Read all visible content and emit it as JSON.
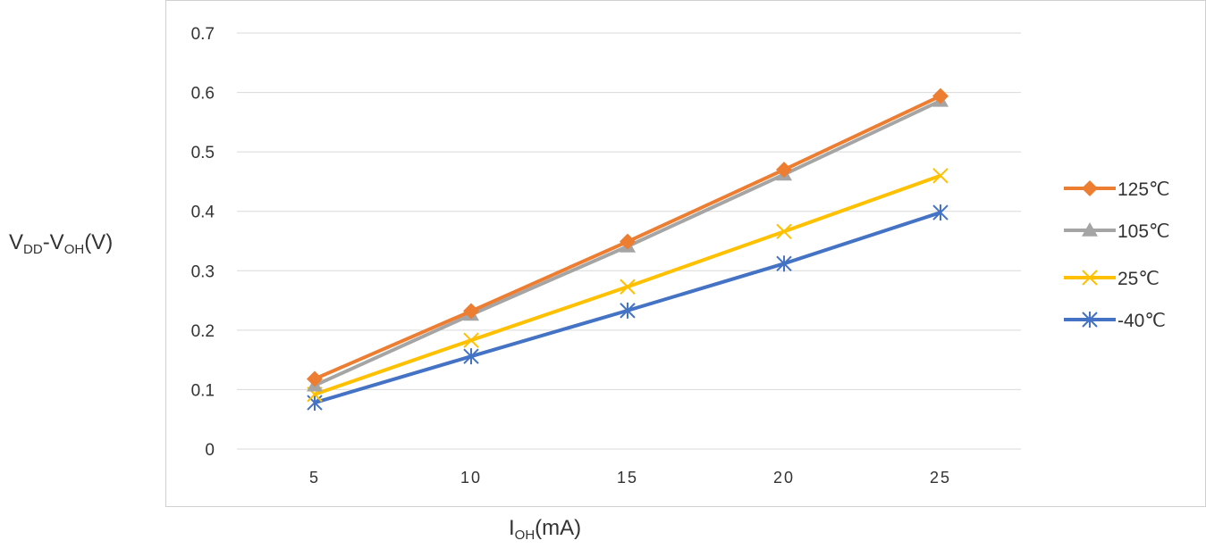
{
  "chart_data": {
    "type": "line",
    "x": [
      5,
      10,
      15,
      20,
      25
    ],
    "ylim": [
      0,
      0.7
    ],
    "yticks": [
      "0",
      "0.1",
      "0.2",
      "0.3",
      "0.4",
      "0.5",
      "0.6",
      "0.7"
    ],
    "xticks": [
      "5",
      "10",
      "15",
      "20",
      "25"
    ],
    "grid": true,
    "legend_position": "right",
    "ylabel": {
      "main1": "V",
      "sub1": "DD",
      "mid": "-V",
      "sub2": "OH",
      "tail": "(V)"
    },
    "xlabel": {
      "main": "I",
      "sub": "OH",
      "tail": "(mA)"
    },
    "series": [
      {
        "name": "125℃",
        "color": "#ED7D31",
        "marker": "diamond",
        "values": [
          0.118,
          0.232,
          0.349,
          0.47,
          0.594
        ]
      },
      {
        "name": "105℃",
        "color": "#A5A5A5",
        "marker": "triangle",
        "values": [
          0.107,
          0.226,
          0.341,
          0.462,
          0.586
        ]
      },
      {
        "name": "25℃",
        "color": "#FFC000",
        "marker": "x",
        "values": [
          0.092,
          0.183,
          0.273,
          0.366,
          0.46
        ]
      },
      {
        "name": "-40℃",
        "color": "#4472C4",
        "marker": "asterisk",
        "values": [
          0.078,
          0.156,
          0.233,
          0.312,
          0.398
        ]
      }
    ]
  }
}
